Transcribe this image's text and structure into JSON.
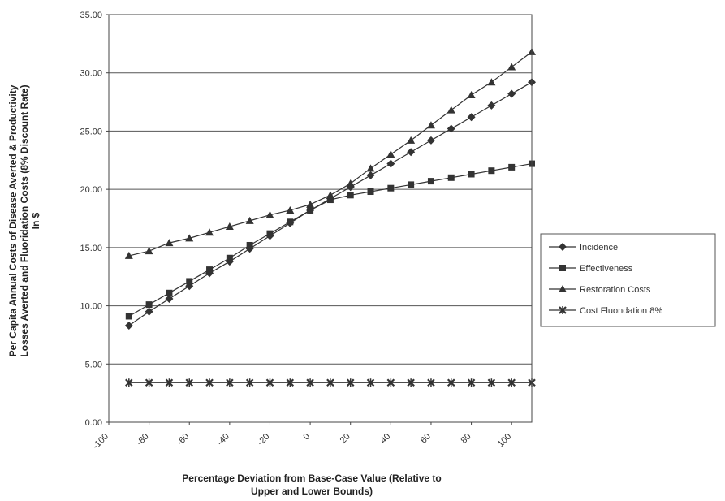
{
  "chart_data": {
    "type": "line",
    "title": "",
    "ylabel_lines": [
      "Per Capita Annual Costs of Disease  Averted &  Productivity",
      "Losses Averted and Fluoridation Costs (8% Discount Rate)",
      "In $"
    ],
    "xlabel_lines": [
      "Percentage Deviation from Base-Case Value (Relative to",
      "Upper and Lower Bounds)"
    ],
    "ylim": [
      0,
      35
    ],
    "y_ticks": [
      "0.00",
      "5.00",
      "10.00",
      "15.00",
      "20.00",
      "25.00",
      "30.00",
      "35.00"
    ],
    "xlim": [
      -100,
      110
    ],
    "x_ticks": [
      "-100",
      "-80",
      "-60",
      "-40",
      "-20",
      "0",
      "20",
      "40",
      "60",
      "80",
      "100"
    ],
    "x": [
      -90,
      -80,
      -70,
      -60,
      -50,
      -40,
      -30,
      -20,
      -10,
      0,
      10,
      20,
      30,
      40,
      50,
      60,
      70,
      80,
      90,
      100,
      110
    ],
    "grid": "horizontal",
    "legend_position": "right",
    "series": [
      {
        "name": "Incidence",
        "marker": "diamond",
        "values": [
          8.3,
          9.5,
          10.6,
          11.7,
          12.8,
          13.8,
          14.9,
          16.0,
          17.1,
          18.2,
          19.2,
          20.2,
          21.2,
          22.2,
          23.2,
          24.2,
          25.2,
          26.2,
          27.2,
          28.2,
          29.2
        ]
      },
      {
        "name": "Effectiveness",
        "marker": "square",
        "values": [
          9.1,
          10.1,
          11.1,
          12.1,
          13.1,
          14.1,
          15.2,
          16.2,
          17.2,
          18.2,
          19.1,
          19.5,
          19.8,
          20.1,
          20.4,
          20.7,
          21.0,
          21.3,
          21.6,
          21.9,
          22.2
        ]
      },
      {
        "name": "Restoration Costs",
        "marker": "triangle",
        "values": [
          14.3,
          14.7,
          15.4,
          15.8,
          16.3,
          16.8,
          17.3,
          17.8,
          18.2,
          18.7,
          19.5,
          20.5,
          21.8,
          23.0,
          24.2,
          25.5,
          26.8,
          28.1,
          29.2,
          30.5,
          31.8
        ]
      },
      {
        "name": "Cost Fluondation 8%",
        "marker": "star",
        "values": [
          3.4,
          3.4,
          3.4,
          3.4,
          3.4,
          3.4,
          3.4,
          3.4,
          3.4,
          3.4,
          3.4,
          3.4,
          3.4,
          3.4,
          3.4,
          3.4,
          3.4,
          3.4,
          3.4,
          3.4,
          3.4
        ]
      }
    ],
    "colors": {
      "series": "#333333",
      "grid": "#555555",
      "axis": "#444444"
    }
  }
}
